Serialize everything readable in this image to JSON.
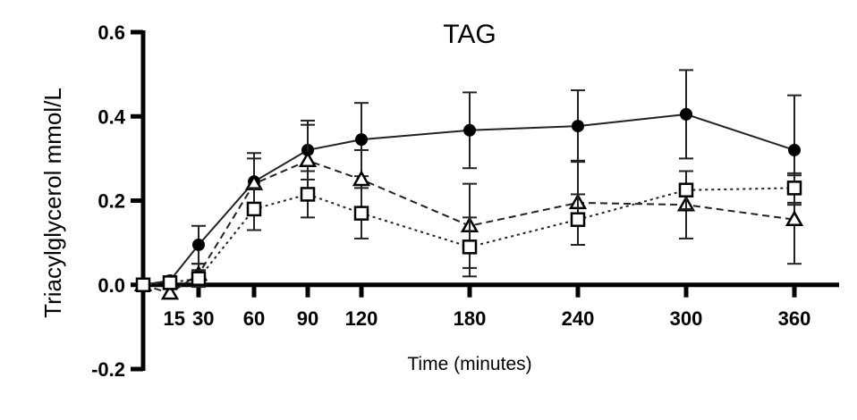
{
  "chart_data": {
    "type": "line",
    "title": "TAG",
    "xlabel": "Time (minutes)",
    "ylabel": "Triacylglycerol mmol/L",
    "ylim": [
      -0.2,
      0.6
    ],
    "yticks": [
      -0.2,
      0.0,
      0.2,
      0.4,
      0.6
    ],
    "ytick_labels": [
      "-0.2",
      "0.0",
      "0.2",
      "0.4",
      "0.6"
    ],
    "xticks": [
      15,
      30,
      60,
      90,
      120,
      180,
      240,
      300,
      360
    ],
    "xtick_labels": [
      "15",
      "30",
      "60",
      "90",
      "120",
      "180",
      "240",
      "300",
      "360"
    ],
    "x_scale": "categorical",
    "x": [
      0,
      15,
      30,
      60,
      90,
      120,
      180,
      240,
      300,
      360
    ],
    "grid": false,
    "legend": "none",
    "series": [
      {
        "marker": "filled-circle",
        "line_style": "solid",
        "values": [
          0.0,
          0.01,
          0.095,
          0.245,
          0.32,
          0.345,
          0.367,
          0.377,
          0.405,
          0.32
        ],
        "errors": [
          0.0,
          0.01,
          0.045,
          0.068,
          0.07,
          0.087,
          0.09,
          0.085,
          0.105,
          0.13
        ]
      },
      {
        "marker": "open-triangle",
        "line_style": "dashed",
        "values": [
          0.0,
          -0.02,
          0.025,
          0.24,
          0.295,
          0.25,
          0.14,
          0.195,
          0.19,
          0.155
        ],
        "errors": [
          0.0,
          0.01,
          0.025,
          0.06,
          0.085,
          0.07,
          0.1,
          0.1,
          0.08,
          0.105
        ]
      },
      {
        "marker": "open-square",
        "line_style": "dotted",
        "values": [
          0.0,
          0.005,
          0.015,
          0.18,
          0.215,
          0.17,
          0.09,
          0.155,
          0.225,
          0.23
        ],
        "errors": [
          0.0,
          0.01,
          0.02,
          0.05,
          0.055,
          0.06,
          0.07,
          0.06,
          0.045,
          0.035
        ]
      }
    ]
  }
}
